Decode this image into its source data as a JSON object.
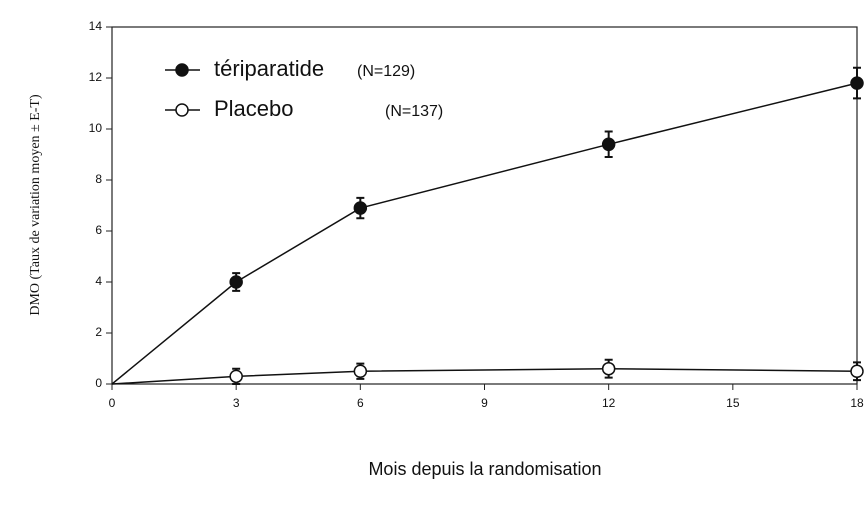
{
  "chart_data": {
    "type": "line",
    "y_label": "DMO (Taux de variation moyen ± E-T)",
    "x_label": "Mois depuis la randomisation",
    "x": [
      0,
      3,
      6,
      12,
      18
    ],
    "series": [
      {
        "name": "tériparatide",
        "n_label": "(N=129)",
        "color": "#111111",
        "marker": "filled",
        "values": [
          0,
          4,
          6.9,
          9.4,
          11.8
        ],
        "errors": [
          null,
          0.35,
          0.4,
          0.5,
          0.6
        ]
      },
      {
        "name": "Placebo",
        "n_label": "(N=137)",
        "color": "#111111",
        "marker": "open",
        "values": [
          0,
          0.3,
          0.5,
          0.6,
          0.5
        ],
        "errors": [
          null,
          0.3,
          0.3,
          0.35,
          0.35
        ]
      }
    ],
    "xlim": [
      0,
      18
    ],
    "xticks": [
      0,
      3,
      6,
      9,
      12,
      15,
      18
    ],
    "ylim": [
      0,
      14
    ],
    "yticks": [
      0,
      2,
      4,
      6,
      8,
      10,
      12,
      14
    ]
  }
}
